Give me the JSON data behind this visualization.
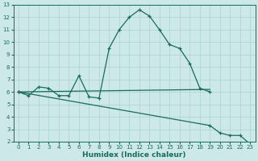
{
  "xlabel": "Humidex (Indice chaleur)",
  "bg_color": "#cce8e8",
  "grid_color": "#b0d4d4",
  "line_color": "#1a6b5a",
  "xlim": [
    -0.5,
    23.5
  ],
  "ylim": [
    2,
    13
  ],
  "yticks": [
    2,
    3,
    4,
    5,
    6,
    7,
    8,
    9,
    10,
    11,
    12,
    13
  ],
  "xticks": [
    0,
    1,
    2,
    3,
    4,
    5,
    6,
    7,
    8,
    9,
    10,
    11,
    12,
    13,
    14,
    15,
    16,
    17,
    18,
    19,
    20,
    21,
    22,
    23
  ],
  "curve1_x": [
    0,
    1,
    2,
    3,
    4,
    5,
    6,
    7,
    8,
    9,
    10,
    11,
    12,
    13,
    14,
    15,
    16,
    17,
    18,
    19
  ],
  "curve1_y": [
    6.0,
    5.7,
    6.4,
    6.3,
    5.7,
    5.7,
    7.3,
    5.6,
    5.5,
    9.5,
    11.0,
    12.0,
    12.6,
    12.1,
    11.0,
    9.8,
    9.5,
    8.3,
    6.3,
    6.0
  ],
  "curve2_x": [
    0,
    19
  ],
  "curve2_y": [
    6.0,
    6.2
  ],
  "curve3_x": [
    0,
    19,
    20,
    21,
    22,
    23
  ],
  "curve3_y": [
    6.0,
    3.3,
    2.7,
    2.5,
    2.5,
    1.8
  ]
}
